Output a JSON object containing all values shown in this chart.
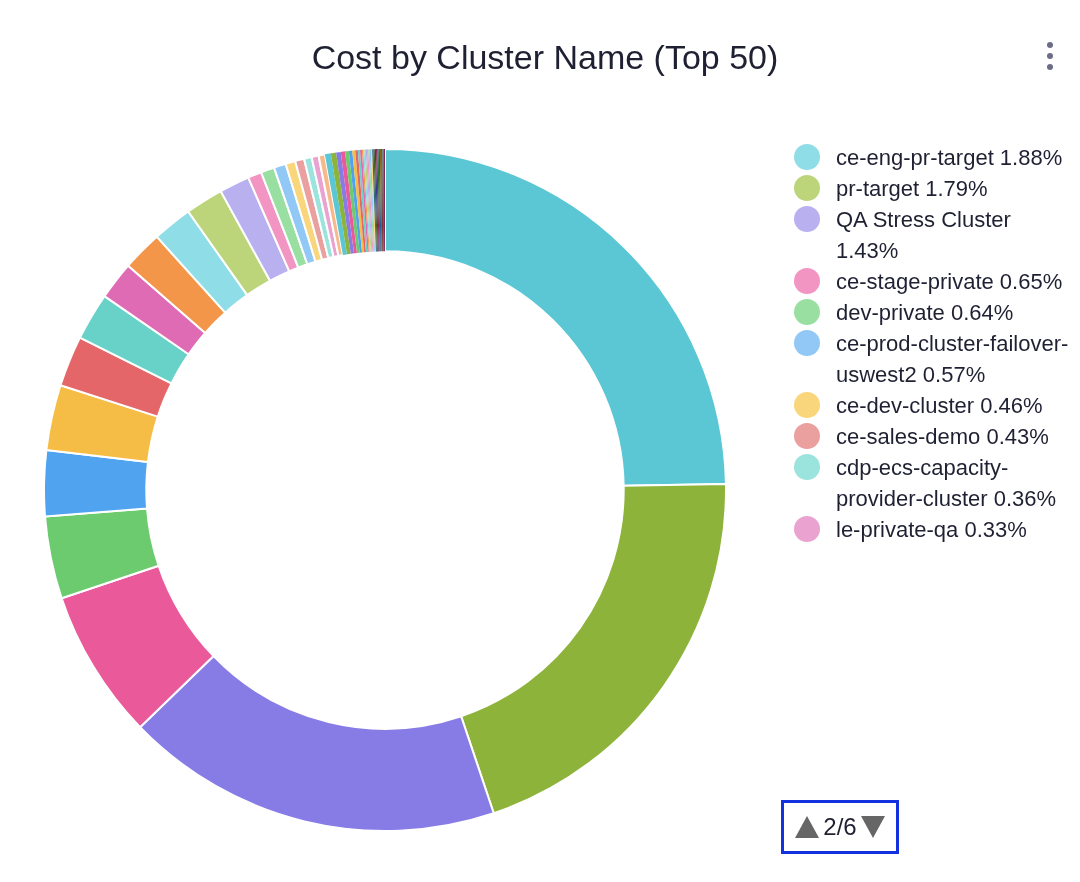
{
  "chart_data": {
    "type": "donut",
    "title": "Cost by Cluster Name (Top 50)",
    "categories": [
      null,
      null,
      null,
      null,
      null,
      null,
      null,
      null,
      null,
      null,
      null,
      "ce-eng-pr-target",
      "pr-target",
      "QA Stress Cluster",
      "ce-stage-private",
      "dev-private",
      "ce-prod-cluster-failover-uswest2",
      "ce-dev-cluster",
      "ce-sales-demo",
      "cdp-ecs-capacity-provider-cluster",
      "le-private-qa",
      null,
      null,
      null,
      null,
      null,
      null,
      null,
      null,
      null,
      null,
      null,
      null,
      null,
      null,
      null,
      null,
      null,
      null,
      null,
      null,
      null,
      null,
      null,
      null,
      null,
      null,
      null,
      null,
      null
    ],
    "values": [
      24.69,
      20.1,
      17.9,
      7.1,
      3.9,
      3.1,
      3.1,
      2.4,
      2.25,
      1.8,
      1.9,
      1.88,
      1.79,
      1.43,
      0.65,
      0.64,
      0.57,
      0.46,
      0.43,
      0.36,
      0.33,
      0.3,
      0.28,
      0.25,
      0.22,
      0.2,
      0.18,
      0.16,
      0.14,
      0.12,
      0.1,
      0.09,
      0.06,
      0.06,
      0.06,
      0.06,
      0.06,
      0.06,
      0.06,
      0.06,
      0.06,
      0.06,
      0.06,
      0.06,
      0.06,
      0.06,
      0.06,
      0.06,
      0.06,
      0.06
    ],
    "value_labels": [
      null,
      null,
      null,
      null,
      null,
      null,
      null,
      null,
      null,
      null,
      null,
      "1.88%",
      "1.79%",
      "1.43%",
      "0.65%",
      "0.64%",
      "0.57%",
      "0.46%",
      "0.43%",
      "0.36%",
      "0.33%",
      null,
      null,
      null,
      null,
      null,
      null,
      null,
      null,
      null,
      null,
      null,
      null,
      null,
      null,
      null,
      null,
      null,
      null,
      null,
      null,
      null,
      null,
      null,
      null,
      null,
      null,
      null,
      null,
      null
    ],
    "colors": [
      "#5bc6d4",
      "#8db33a",
      "#877be6",
      "#ea5a9b",
      "#6ccb6f",
      "#4fa3ef",
      "#f5bd45",
      "#e56668",
      "#68d2c8",
      "#e06bb5",
      "#f3964a",
      "#8fdde6",
      "#bcd57a",
      "#b9b0f0",
      "#f295c2",
      "#98dfa1",
      "#92c8f5",
      "#f9d57c",
      "#eba0a0",
      "#9be3dd",
      "#eaa3d0",
      "#f7b98a",
      "#5bc6d4",
      "#8db33a",
      "#877be6",
      "#ea5a9b",
      "#6ccb6f",
      "#4fa3ef",
      "#f5bd45",
      "#e56668",
      "#68d2c8",
      "#e06bb5",
      "#f3964a",
      "#8fdde6",
      "#bcd57a",
      "#b9b0f0",
      "#f295c2",
      "#98dfa1",
      "#92c8f5",
      "#f9d57c",
      "#2f6f7a",
      "#4a5e20",
      "#3d3591",
      "#8a2458",
      "#2e6e31",
      "#1f5a94",
      "#8a6410",
      "#7a2a2c",
      "#2b7a72",
      "#7a2a5e"
    ],
    "legend": "right",
    "annotations": [
      "2/6"
    ]
  }
}
